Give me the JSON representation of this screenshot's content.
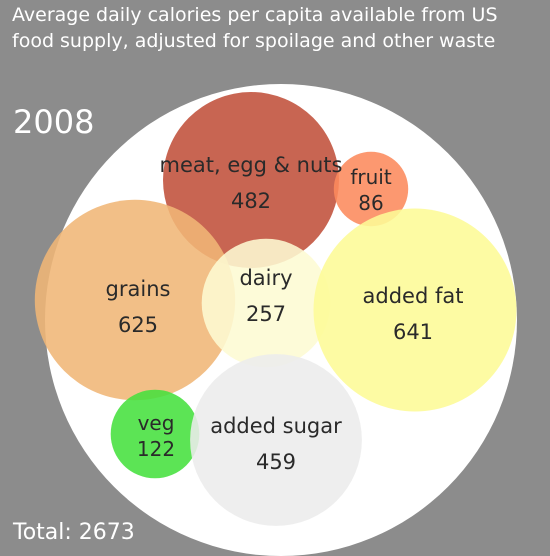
{
  "title_lines": [
    "Average daily calories per capita available from US",
    "food supply, adjusted for spoilage and other waste"
  ],
  "year": "2008",
  "total_label": "Total: 2673",
  "chart_data": {
    "type": "bubble",
    "title": "Average daily calories per capita available from US food supply, adjusted for spoilage and other waste",
    "year": "2008",
    "total": 2673,
    "series": [
      {
        "name": "meat, egg & nuts",
        "value": 482,
        "color": "#c0503a"
      },
      {
        "name": "fruit",
        "value": 86,
        "color": "#fc8a5c"
      },
      {
        "name": "grains",
        "value": 625,
        "color": "#f0b676"
      },
      {
        "name": "dairy",
        "value": 257,
        "color": "#fdfbd3"
      },
      {
        "name": "added fat",
        "value": 641,
        "color": "#fdfa96"
      },
      {
        "name": "veg",
        "value": 122,
        "color": "#45e03e"
      },
      {
        "name": "added sugar",
        "value": 459,
        "color": "#ececec"
      }
    ]
  }
}
